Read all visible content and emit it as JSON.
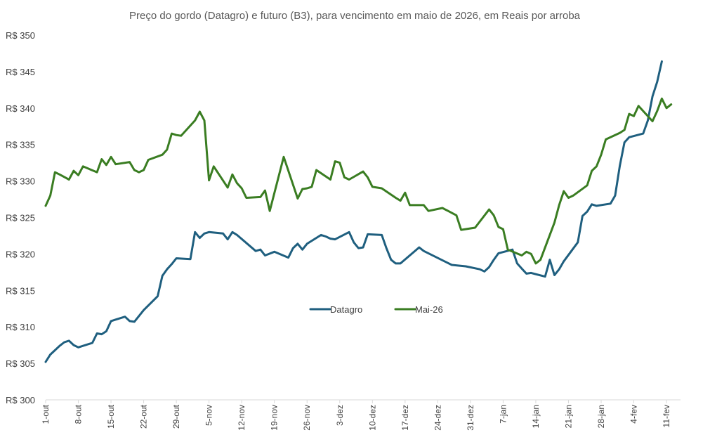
{
  "chart_data": {
    "type": "line",
    "title": "Preço do gordo (Datagro) e futuro (B3), para vencimento em maio de 2026, em Reais por arroba",
    "xlabel": "",
    "ylabel": "",
    "ylim": [
      300,
      350
    ],
    "yticks": [
      300,
      305,
      310,
      315,
      320,
      325,
      330,
      335,
      340,
      345,
      350
    ],
    "ytick_prefix": "R$ ",
    "grid": false,
    "legend_position": "center",
    "x_range_days": [
      0,
      136
    ],
    "x_ticks": [
      {
        "day": 0,
        "label": "1-out"
      },
      {
        "day": 7,
        "label": "8-out"
      },
      {
        "day": 14,
        "label": "15-out"
      },
      {
        "day": 21,
        "label": "22-out"
      },
      {
        "day": 28,
        "label": "29-out"
      },
      {
        "day": 35,
        "label": "5-nov"
      },
      {
        "day": 42,
        "label": "12-nov"
      },
      {
        "day": 49,
        "label": "19-nov"
      },
      {
        "day": 56,
        "label": "26-nov"
      },
      {
        "day": 63,
        "label": "3-dez"
      },
      {
        "day": 70,
        "label": "10-dez"
      },
      {
        "day": 77,
        "label": "17-dez"
      },
      {
        "day": 84,
        "label": "24-dez"
      },
      {
        "day": 91,
        "label": "31-dez"
      },
      {
        "day": 98,
        "label": "7-jan"
      },
      {
        "day": 105,
        "label": "14-jan"
      },
      {
        "day": 112,
        "label": "21-jan"
      },
      {
        "day": 119,
        "label": "28-jan"
      },
      {
        "day": 126,
        "label": "4-fev"
      },
      {
        "day": 133,
        "label": "11-fev"
      }
    ],
    "series": [
      {
        "name": "Datagro",
        "color": "#1f5f7f",
        "points": [
          [
            0,
            305.2
          ],
          [
            1,
            306.2
          ],
          [
            2,
            306.8
          ],
          [
            3,
            307.4
          ],
          [
            4,
            307.9
          ],
          [
            5,
            308.1
          ],
          [
            6,
            307.5
          ],
          [
            7,
            307.2
          ],
          [
            10,
            307.8
          ],
          [
            11,
            309.1
          ],
          [
            12,
            309.0
          ],
          [
            13,
            309.4
          ],
          [
            14,
            310.8
          ],
          [
            15,
            311.0
          ],
          [
            17,
            311.4
          ],
          [
            18,
            310.8
          ],
          [
            19,
            310.7
          ],
          [
            21,
            312.3
          ],
          [
            24,
            314.2
          ],
          [
            25,
            317.0
          ],
          [
            26,
            317.9
          ],
          [
            27,
            318.6
          ],
          [
            28,
            319.4
          ],
          [
            31,
            319.3
          ],
          [
            32,
            323.0
          ],
          [
            33,
            322.2
          ],
          [
            34,
            322.8
          ],
          [
            35,
            323.0
          ],
          [
            38,
            322.8
          ],
          [
            39,
            322.0
          ],
          [
            40,
            323.0
          ],
          [
            41,
            322.6
          ],
          [
            45,
            320.4
          ],
          [
            46,
            320.6
          ],
          [
            47,
            319.8
          ],
          [
            49,
            320.3
          ],
          [
            52,
            319.5
          ],
          [
            53,
            320.8
          ],
          [
            54,
            321.4
          ],
          [
            55,
            320.6
          ],
          [
            56,
            321.4
          ],
          [
            59,
            322.6
          ],
          [
            60,
            322.4
          ],
          [
            61,
            322.1
          ],
          [
            62,
            322.0
          ],
          [
            65,
            323.0
          ],
          [
            66,
            321.6
          ],
          [
            67,
            320.8
          ],
          [
            68,
            320.9
          ],
          [
            69,
            322.7
          ],
          [
            72,
            322.6
          ],
          [
            73,
            320.8
          ],
          [
            74,
            319.2
          ],
          [
            75,
            318.7
          ],
          [
            76,
            318.7
          ],
          [
            80,
            320.9
          ],
          [
            81,
            320.4
          ],
          [
            87,
            318.5
          ],
          [
            90,
            318.3
          ],
          [
            93,
            317.9
          ],
          [
            94,
            317.6
          ],
          [
            95,
            318.2
          ],
          [
            96,
            319.2
          ],
          [
            97,
            320.1
          ],
          [
            100,
            320.6
          ],
          [
            101,
            318.7
          ],
          [
            102,
            318.0
          ],
          [
            103,
            317.3
          ],
          [
            104,
            317.4
          ],
          [
            107,
            316.9
          ],
          [
            108,
            319.2
          ],
          [
            109,
            317.1
          ],
          [
            110,
            317.9
          ],
          [
            111,
            319.0
          ],
          [
            114,
            321.6
          ],
          [
            115,
            325.2
          ],
          [
            116,
            325.8
          ],
          [
            117,
            326.8
          ],
          [
            118,
            326.6
          ],
          [
            121,
            326.9
          ],
          [
            122,
            328.0
          ],
          [
            123,
            332.1
          ],
          [
            124,
            335.3
          ],
          [
            125,
            336.0
          ],
          [
            128,
            336.5
          ],
          [
            129,
            338.3
          ],
          [
            130,
            341.6
          ],
          [
            131,
            343.6
          ],
          [
            132,
            346.4
          ]
        ]
      },
      {
        "name": "Mai-26",
        "color": "#3a7d22",
        "points": [
          [
            0,
            326.6
          ],
          [
            1,
            328.0
          ],
          [
            2,
            331.2
          ],
          [
            3,
            330.9
          ],
          [
            5,
            330.2
          ],
          [
            6,
            331.4
          ],
          [
            7,
            330.8
          ],
          [
            8,
            332.0
          ],
          [
            11,
            331.2
          ],
          [
            12,
            333.0
          ],
          [
            13,
            332.2
          ],
          [
            14,
            333.3
          ],
          [
            15,
            332.3
          ],
          [
            18,
            332.6
          ],
          [
            19,
            331.5
          ],
          [
            20,
            331.2
          ],
          [
            21,
            331.5
          ],
          [
            22,
            332.9
          ],
          [
            25,
            333.6
          ],
          [
            26,
            334.3
          ],
          [
            27,
            336.5
          ],
          [
            28,
            336.3
          ],
          [
            29,
            336.2
          ],
          [
            32,
            338.3
          ],
          [
            33,
            339.5
          ],
          [
            34,
            338.3
          ],
          [
            35,
            330.1
          ],
          [
            36,
            332.0
          ],
          [
            39,
            329.1
          ],
          [
            40,
            330.9
          ],
          [
            41,
            329.7
          ],
          [
            42,
            329.0
          ],
          [
            43,
            327.7
          ],
          [
            46,
            327.8
          ],
          [
            47,
            328.7
          ],
          [
            48,
            325.9
          ],
          [
            51,
            333.3
          ],
          [
            54,
            327.6
          ],
          [
            55,
            328.9
          ],
          [
            56,
            329.0
          ],
          [
            57,
            329.2
          ],
          [
            58,
            331.5
          ],
          [
            61,
            330.2
          ],
          [
            62,
            332.7
          ],
          [
            63,
            332.5
          ],
          [
            64,
            330.5
          ],
          [
            65,
            330.2
          ],
          [
            68,
            331.3
          ],
          [
            69,
            330.5
          ],
          [
            70,
            329.2
          ],
          [
            72,
            329.0
          ],
          [
            75,
            327.7
          ],
          [
            76,
            327.3
          ],
          [
            77,
            328.4
          ],
          [
            78,
            326.7
          ],
          [
            81,
            326.7
          ],
          [
            82,
            325.9
          ],
          [
            85,
            326.3
          ],
          [
            88,
            325.3
          ],
          [
            89,
            323.3
          ],
          [
            92,
            323.6
          ],
          [
            95,
            326.1
          ],
          [
            96,
            325.3
          ],
          [
            97,
            323.7
          ],
          [
            98,
            323.4
          ],
          [
            99,
            320.6
          ],
          [
            102,
            319.8
          ],
          [
            103,
            320.3
          ],
          [
            104,
            320.0
          ],
          [
            105,
            318.7
          ],
          [
            106,
            319.2
          ],
          [
            109,
            324.3
          ],
          [
            110,
            326.7
          ],
          [
            111,
            328.6
          ],
          [
            112,
            327.7
          ],
          [
            113,
            328.0
          ],
          [
            116,
            329.4
          ],
          [
            117,
            331.4
          ],
          [
            118,
            332.0
          ],
          [
            119,
            333.6
          ],
          [
            120,
            335.7
          ],
          [
            123,
            336.6
          ],
          [
            124,
            337.0
          ],
          [
            125,
            339.2
          ],
          [
            126,
            338.9
          ],
          [
            127,
            340.3
          ],
          [
            130,
            338.2
          ],
          [
            131,
            339.6
          ],
          [
            132,
            341.3
          ],
          [
            133,
            340.0
          ],
          [
            134,
            340.5
          ]
        ]
      }
    ]
  }
}
